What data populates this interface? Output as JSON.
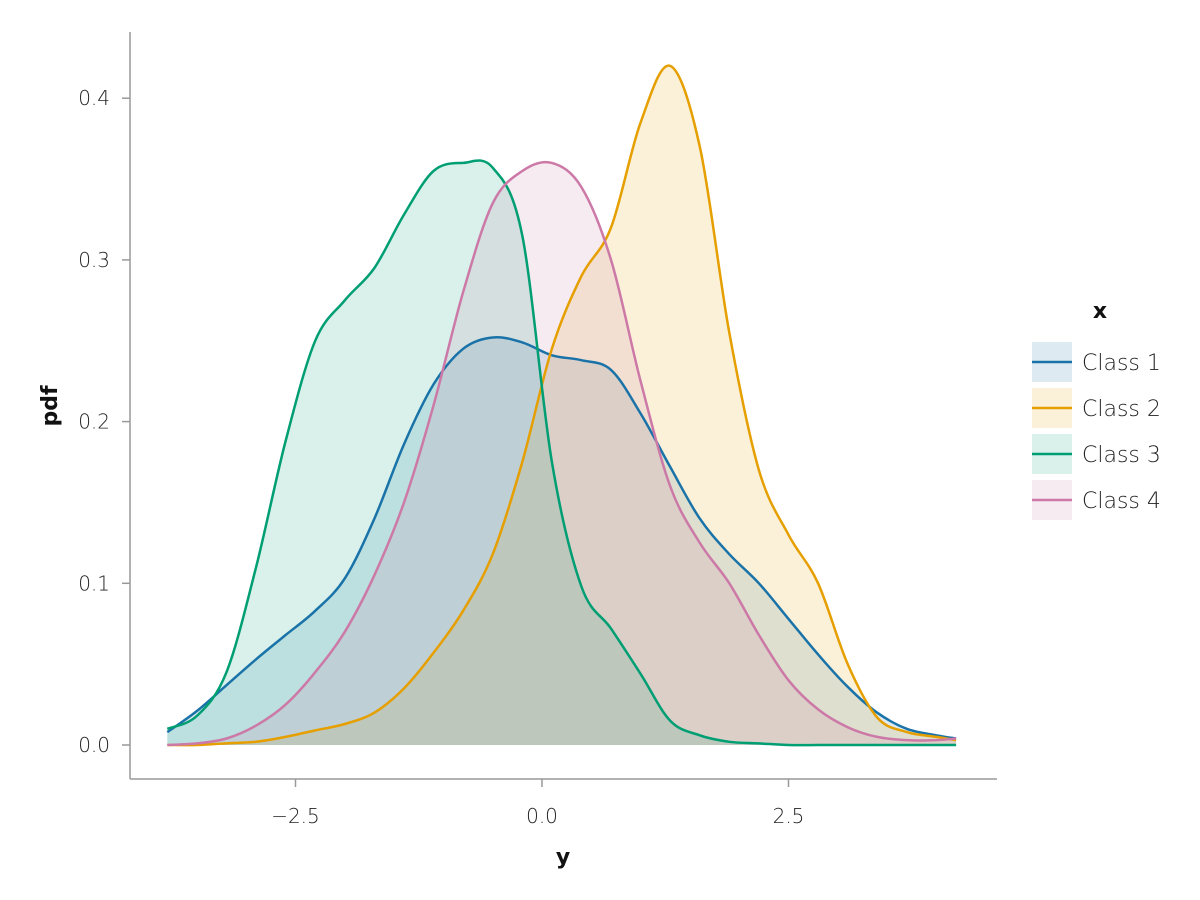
{
  "chart_data": {
    "type": "area",
    "title": "",
    "xlabel": "y",
    "ylabel": "pdf",
    "xlim": [
      -4.1,
      4.5
    ],
    "ylim": [
      -0.02,
      0.44
    ],
    "x_ticks": [
      -2.5,
      0.0,
      2.5
    ],
    "x_tick_labels": [
      "−2.5",
      "0.0",
      "2.5"
    ],
    "y_ticks": [
      0.0,
      0.1,
      0.2,
      0.3,
      0.4
    ],
    "y_tick_labels": [
      "0.0",
      "0.1",
      "0.2",
      "0.3",
      "0.4"
    ],
    "grid": false,
    "legend": {
      "title": "x",
      "position": "right"
    },
    "fill_opacity": 0.15,
    "series": [
      {
        "name": "Class 1",
        "color": "#1a73a8",
        "x": [
          -3.8,
          -3.5,
          -3.2,
          -2.9,
          -2.6,
          -2.3,
          -2.0,
          -1.7,
          -1.4,
          -1.1,
          -0.8,
          -0.5,
          -0.2,
          0.1,
          0.4,
          0.7,
          1.0,
          1.3,
          1.6,
          1.9,
          2.2,
          2.5,
          2.8,
          3.1,
          3.4,
          3.7,
          4.0,
          4.2
        ],
        "y": [
          0.008,
          0.021,
          0.037,
          0.053,
          0.068,
          0.083,
          0.103,
          0.14,
          0.186,
          0.223,
          0.245,
          0.252,
          0.249,
          0.241,
          0.238,
          0.232,
          0.205,
          0.172,
          0.14,
          0.118,
          0.1,
          0.078,
          0.056,
          0.036,
          0.02,
          0.01,
          0.006,
          0.004
        ]
      },
      {
        "name": "Class 2",
        "color": "#e69f00",
        "x": [
          -3.8,
          -3.5,
          -3.2,
          -2.9,
          -2.6,
          -2.3,
          -2.0,
          -1.7,
          -1.4,
          -1.1,
          -0.8,
          -0.5,
          -0.2,
          0.1,
          0.4,
          0.7,
          1.0,
          1.3,
          1.6,
          1.9,
          2.2,
          2.5,
          2.8,
          3.1,
          3.4,
          3.7,
          4.0,
          4.2
        ],
        "y": [
          0.0,
          0.0,
          0.001,
          0.002,
          0.005,
          0.009,
          0.013,
          0.02,
          0.035,
          0.057,
          0.083,
          0.118,
          0.175,
          0.245,
          0.29,
          0.32,
          0.385,
          0.42,
          0.37,
          0.255,
          0.17,
          0.13,
          0.1,
          0.05,
          0.017,
          0.008,
          0.005,
          0.003
        ]
      },
      {
        "name": "Class 3",
        "color": "#009e73",
        "x": [
          -3.8,
          -3.5,
          -3.2,
          -2.9,
          -2.6,
          -2.3,
          -2.0,
          -1.7,
          -1.4,
          -1.1,
          -0.8,
          -0.5,
          -0.2,
          0.1,
          0.4,
          0.7,
          1.0,
          1.3,
          1.6,
          1.9,
          2.2,
          2.5,
          2.8,
          3.1,
          3.4,
          3.7,
          4.0,
          4.2
        ],
        "y": [
          0.01,
          0.018,
          0.045,
          0.11,
          0.188,
          0.25,
          0.275,
          0.295,
          0.328,
          0.355,
          0.36,
          0.357,
          0.315,
          0.175,
          0.098,
          0.072,
          0.044,
          0.015,
          0.006,
          0.002,
          0.001,
          0.0,
          0.0,
          0.0,
          0.0,
          0.0,
          0.0,
          0.0
        ]
      },
      {
        "name": "Class 4",
        "color": "#cc79a7",
        "x": [
          -3.8,
          -3.5,
          -3.2,
          -2.9,
          -2.6,
          -2.3,
          -2.0,
          -1.7,
          -1.4,
          -1.1,
          -0.8,
          -0.5,
          -0.2,
          0.1,
          0.4,
          0.7,
          1.0,
          1.3,
          1.6,
          1.9,
          2.2,
          2.5,
          2.8,
          3.1,
          3.4,
          3.7,
          4.0,
          4.2
        ],
        "y": [
          0.0,
          0.001,
          0.004,
          0.012,
          0.025,
          0.045,
          0.07,
          0.105,
          0.15,
          0.21,
          0.28,
          0.335,
          0.355,
          0.36,
          0.345,
          0.3,
          0.225,
          0.16,
          0.125,
          0.1,
          0.068,
          0.04,
          0.022,
          0.011,
          0.005,
          0.003,
          0.003,
          0.004
        ]
      }
    ]
  }
}
